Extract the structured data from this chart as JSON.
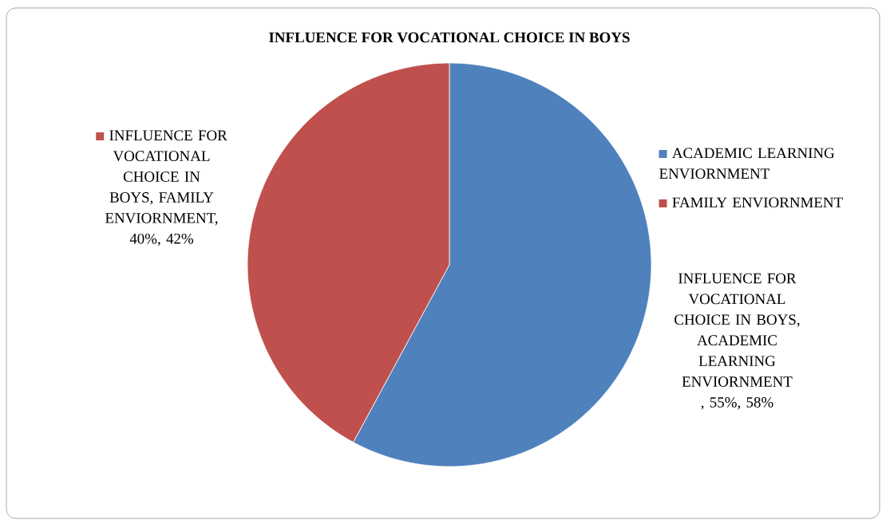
{
  "chart_data": {
    "type": "pie",
    "title": "INFLUENCE FOR VOCATIONAL CHOICE IN BOYS",
    "categories": [
      "ACADEMIC LEARNING ENVIORNMENT",
      "FAMILY ENVIORNMENT"
    ],
    "values": [
      55,
      40
    ],
    "colors": [
      "#4f81bd",
      "#c0504d"
    ],
    "value_labels": [
      "INFLUENCE FOR VOCATIONAL CHOICE IN BOYS, ACADEMIC LEARNING ENVIORNMENT , 55%, 58%",
      "INFLUENCE FOR VOCATIONAL CHOICE IN BOYS, FAMILY ENVIORNMENT, 40%, 42%"
    ],
    "legend": "right"
  }
}
